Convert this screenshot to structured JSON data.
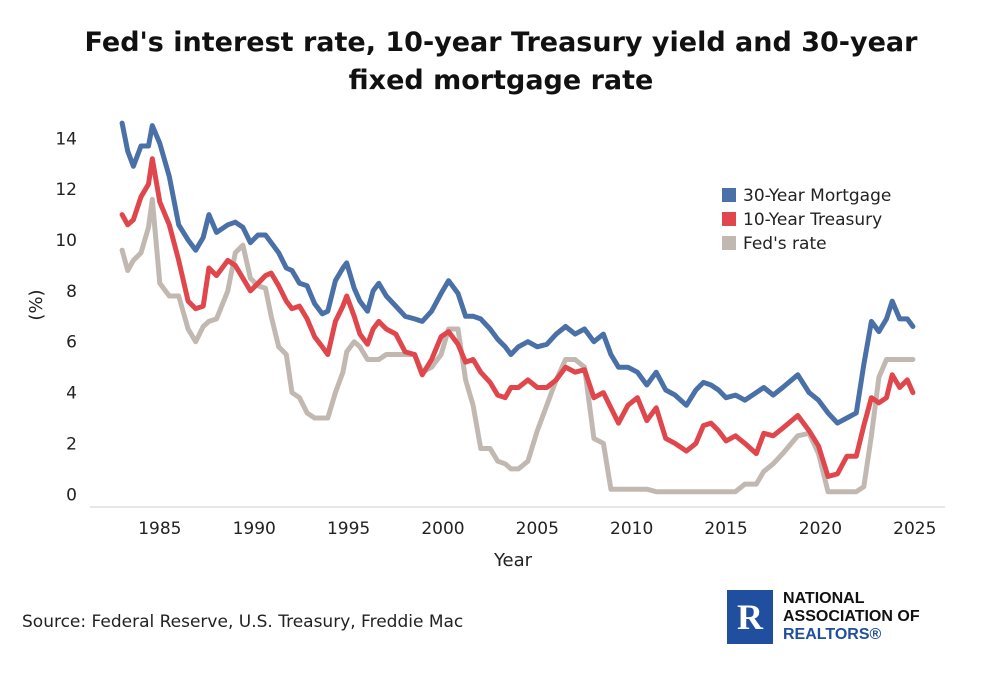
{
  "title_line1": "Fed's interest rate, 10-year Treasury yield and 30-year",
  "title_line2": "fixed mortgage rate",
  "source": "Source: Federal Reserve, U.S. Treasury, Freddie Mac",
  "logo": {
    "line1": "NATIONAL",
    "line2": "ASSOCIATION OF",
    "line3": "REALTORS®"
  },
  "colors": {
    "mortgage": "#4a70a8",
    "treasury": "#e0474c",
    "fed": "#c2b8b2",
    "logo": "#1f4f9e"
  },
  "chart_data": {
    "type": "line",
    "title": "Fed's interest rate, 10-year Treasury yield and 30-year fixed mortgage rate",
    "xlabel": "Year",
    "ylabel": "(%)",
    "xlim": [
      1981.3,
      2026.6
    ],
    "ylim": [
      -0.5,
      14.8
    ],
    "xticks": [
      "1985",
      "1990",
      "1995",
      "2000",
      "2005",
      "2010",
      "2015",
      "2020",
      "2025"
    ],
    "yticks": [
      "0",
      "2",
      "4",
      "6",
      "8",
      "10",
      "12",
      "14"
    ],
    "legend_position": "right",
    "grid": false,
    "series": [
      {
        "name": "30-Year Mortgage",
        "x": [
          1983.0,
          1983.3,
          1983.6,
          1984.0,
          1984.4,
          1984.6,
          1985.0,
          1985.5,
          1986.0,
          1986.5,
          1986.9,
          1987.3,
          1987.6,
          1988.0,
          1988.6,
          1989.0,
          1989.4,
          1989.8,
          1990.2,
          1990.6,
          1990.9,
          1991.3,
          1991.7,
          1992.0,
          1992.4,
          1992.8,
          1993.2,
          1993.6,
          1993.9,
          1994.3,
          1994.7,
          1994.9,
          1995.3,
          1995.6,
          1996.0,
          1996.3,
          1996.6,
          1997.0,
          1997.5,
          1998.0,
          1998.5,
          1998.9,
          1999.4,
          1999.9,
          2000.3,
          2000.8,
          2001.2,
          2001.6,
          2002.0,
          2002.5,
          2002.9,
          2003.3,
          2003.6,
          2004.0,
          2004.5,
          2005.0,
          2005.5,
          2006.0,
          2006.5,
          2007.0,
          2007.5,
          2008.0,
          2008.5,
          2008.9,
          2009.3,
          2009.8,
          2010.3,
          2010.8,
          2011.3,
          2011.8,
          2012.3,
          2012.9,
          2013.4,
          2013.8,
          2014.2,
          2014.6,
          2015.0,
          2015.5,
          2016.0,
          2016.6,
          2017.0,
          2017.5,
          2018.0,
          2018.8,
          2019.4,
          2019.9,
          2020.4,
          2020.9,
          2021.4,
          2021.9,
          2022.3,
          2022.7,
          2023.1,
          2023.5,
          2023.8,
          2024.2,
          2024.6,
          2024.9
        ],
        "values": [
          14.6,
          13.5,
          12.9,
          13.7,
          13.7,
          14.5,
          13.8,
          12.5,
          10.6,
          10.0,
          9.6,
          10.1,
          11.0,
          10.3,
          10.6,
          10.7,
          10.5,
          9.9,
          10.2,
          10.2,
          9.9,
          9.5,
          8.9,
          8.8,
          8.3,
          8.2,
          7.5,
          7.1,
          7.2,
          8.4,
          8.9,
          9.1,
          8.1,
          7.6,
          7.2,
          8.0,
          8.3,
          7.8,
          7.4,
          7.0,
          6.9,
          6.8,
          7.2,
          7.9,
          8.4,
          7.9,
          7.0,
          7.0,
          6.9,
          6.5,
          6.1,
          5.8,
          5.5,
          5.8,
          6.0,
          5.8,
          5.9,
          6.3,
          6.6,
          6.3,
          6.5,
          6.0,
          6.3,
          5.5,
          5.0,
          5.0,
          4.8,
          4.3,
          4.8,
          4.1,
          3.9,
          3.5,
          4.1,
          4.4,
          4.3,
          4.1,
          3.8,
          3.9,
          3.7,
          4.0,
          4.2,
          3.9,
          4.2,
          4.7,
          4.0,
          3.7,
          3.2,
          2.8,
          3.0,
          3.2,
          5.1,
          6.8,
          6.4,
          6.9,
          7.6,
          6.9,
          6.9,
          6.6
        ]
      },
      {
        "name": "10-Year Treasury",
        "x": [
          1983.0,
          1983.3,
          1983.6,
          1984.0,
          1984.4,
          1984.6,
          1985.0,
          1985.5,
          1986.0,
          1986.5,
          1986.9,
          1987.3,
          1987.6,
          1988.0,
          1988.6,
          1989.0,
          1989.4,
          1989.8,
          1990.2,
          1990.6,
          1990.9,
          1991.3,
          1991.7,
          1992.0,
          1992.4,
          1992.8,
          1993.2,
          1993.6,
          1993.9,
          1994.3,
          1994.7,
          1994.9,
          1995.3,
          1995.6,
          1996.0,
          1996.3,
          1996.6,
          1997.0,
          1997.5,
          1998.0,
          1998.5,
          1998.9,
          1999.4,
          1999.9,
          2000.3,
          2000.8,
          2001.2,
          2001.6,
          2002.0,
          2002.5,
          2002.9,
          2003.3,
          2003.6,
          2004.0,
          2004.5,
          2005.0,
          2005.5,
          2006.0,
          2006.5,
          2007.0,
          2007.5,
          2008.0,
          2008.5,
          2008.9,
          2009.3,
          2009.8,
          2010.3,
          2010.8,
          2011.3,
          2011.8,
          2012.3,
          2012.9,
          2013.4,
          2013.8,
          2014.2,
          2014.6,
          2015.0,
          2015.5,
          2016.0,
          2016.6,
          2017.0,
          2017.5,
          2018.0,
          2018.8,
          2019.4,
          2019.9,
          2020.4,
          2020.9,
          2021.4,
          2021.9,
          2022.3,
          2022.7,
          2023.1,
          2023.5,
          2023.8,
          2024.2,
          2024.6,
          2024.9
        ],
        "values": [
          11.0,
          10.6,
          10.8,
          11.7,
          12.2,
          13.2,
          11.5,
          10.6,
          9.2,
          7.6,
          7.3,
          7.4,
          8.9,
          8.6,
          9.2,
          9.0,
          8.5,
          8.0,
          8.3,
          8.6,
          8.7,
          8.2,
          7.6,
          7.3,
          7.4,
          6.9,
          6.2,
          5.8,
          5.5,
          6.8,
          7.4,
          7.8,
          7.0,
          6.3,
          5.9,
          6.5,
          6.8,
          6.5,
          6.3,
          5.6,
          5.5,
          4.7,
          5.3,
          6.2,
          6.4,
          5.9,
          5.2,
          5.3,
          4.8,
          4.4,
          3.9,
          3.8,
          4.2,
          4.2,
          4.5,
          4.2,
          4.2,
          4.5,
          5.0,
          4.8,
          4.9,
          3.8,
          4.0,
          3.4,
          2.8,
          3.5,
          3.8,
          2.9,
          3.4,
          2.2,
          2.0,
          1.7,
          2.0,
          2.7,
          2.8,
          2.5,
          2.1,
          2.3,
          2.0,
          1.6,
          2.4,
          2.3,
          2.6,
          3.1,
          2.5,
          1.9,
          0.7,
          0.8,
          1.5,
          1.5,
          2.7,
          3.8,
          3.6,
          3.8,
          4.7,
          4.2,
          4.5,
          4.0
        ]
      },
      {
        "name": "Fed's rate",
        "x": [
          1983.0,
          1983.3,
          1983.6,
          1984.0,
          1984.4,
          1984.6,
          1985.0,
          1985.5,
          1986.0,
          1986.5,
          1986.9,
          1987.3,
          1987.6,
          1988.0,
          1988.6,
          1989.0,
          1989.4,
          1989.8,
          1990.2,
          1990.6,
          1990.9,
          1991.3,
          1991.7,
          1992.0,
          1992.4,
          1992.8,
          1993.2,
          1993.6,
          1993.9,
          1994.3,
          1994.7,
          1994.9,
          1995.3,
          1995.6,
          1996.0,
          1996.3,
          1996.6,
          1997.0,
          1997.5,
          1998.0,
          1998.5,
          1998.9,
          1999.4,
          1999.9,
          2000.3,
          2000.8,
          2001.2,
          2001.6,
          2002.0,
          2002.5,
          2002.9,
          2003.3,
          2003.6,
          2004.0,
          2004.5,
          2005.0,
          2005.5,
          2006.0,
          2006.5,
          2007.0,
          2007.5,
          2008.0,
          2008.5,
          2008.9,
          2009.3,
          2009.8,
          2010.3,
          2010.8,
          2011.3,
          2011.8,
          2012.3,
          2012.9,
          2013.4,
          2013.8,
          2014.2,
          2014.6,
          2015.0,
          2015.5,
          2016.0,
          2016.6,
          2017.0,
          2017.5,
          2018.0,
          2018.8,
          2019.4,
          2019.9,
          2020.4,
          2020.9,
          2021.4,
          2021.9,
          2022.3,
          2022.7,
          2023.1,
          2023.5,
          2023.8,
          2024.2,
          2024.6,
          2024.9
        ],
        "values": [
          9.6,
          8.8,
          9.2,
          9.5,
          10.5,
          11.6,
          8.3,
          7.8,
          7.8,
          6.5,
          6.0,
          6.6,
          6.8,
          6.9,
          8.0,
          9.5,
          9.8,
          8.5,
          8.2,
          8.1,
          7.0,
          5.8,
          5.5,
          4.0,
          3.8,
          3.2,
          3.0,
          3.0,
          3.0,
          4.0,
          4.8,
          5.6,
          6.0,
          5.8,
          5.3,
          5.3,
          5.3,
          5.5,
          5.5,
          5.5,
          5.5,
          4.8,
          5.0,
          5.5,
          6.5,
          6.5,
          4.5,
          3.5,
          1.8,
          1.8,
          1.3,
          1.2,
          1.0,
          1.0,
          1.3,
          2.5,
          3.5,
          4.5,
          5.3,
          5.3,
          5.0,
          2.2,
          2.0,
          0.2,
          0.2,
          0.2,
          0.2,
          0.2,
          0.1,
          0.1,
          0.1,
          0.1,
          0.1,
          0.1,
          0.1,
          0.1,
          0.1,
          0.1,
          0.4,
          0.4,
          0.9,
          1.2,
          1.6,
          2.3,
          2.4,
          1.6,
          0.1,
          0.1,
          0.1,
          0.1,
          0.3,
          2.3,
          4.6,
          5.3,
          5.3,
          5.3,
          5.3,
          5.3
        ]
      }
    ]
  }
}
